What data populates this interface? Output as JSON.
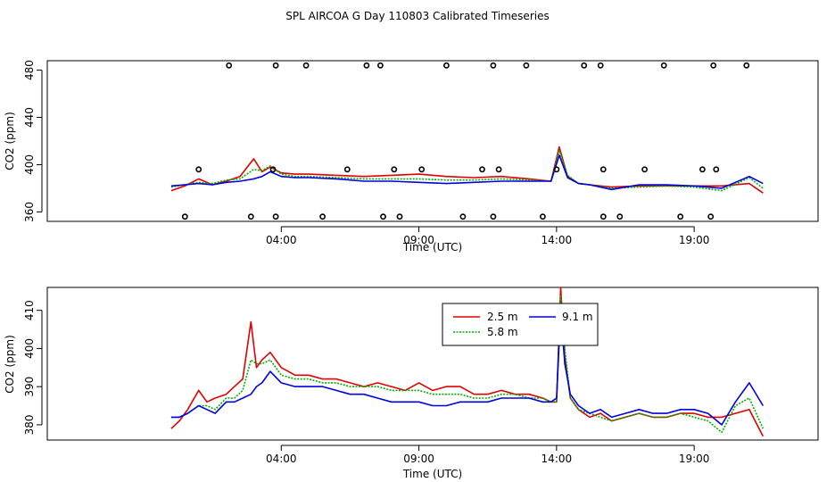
{
  "title": "SPL AIRCOA G  Day 110803  Calibrated Timeseries",
  "colors": {
    "s1": "#e00000",
    "s2": "#00b000",
    "s3": "#0000dd",
    "axis": "#000000"
  },
  "chart_data": [
    {
      "type": "line",
      "name": "top-panel",
      "xlabel": "Time (UTC)",
      "ylabel": "CO2 (ppm)",
      "xlim": [
        -4.5,
        23.5
      ],
      "ylim": [
        352,
        488
      ],
      "xticks": [
        4,
        9,
        14,
        19
      ],
      "xtick_labels": [
        "04:00",
        "09:00",
        "14:00",
        "19:00"
      ],
      "yticks": [
        360,
        400,
        440,
        480
      ],
      "ytick_labels": [
        "360",
        "400",
        "440",
        "480"
      ],
      "series": [
        {
          "name": "2.5 m",
          "color": "#e00000",
          "x": [
            0,
            0.5,
            1,
            1.5,
            2,
            2.5,
            3,
            3.3,
            3.6,
            4,
            4.5,
            5,
            6,
            7,
            8,
            9,
            10,
            11,
            12,
            13,
            13.8,
            14.1,
            14.4,
            14.8,
            15.2,
            16,
            17,
            18,
            19,
            20,
            21,
            21.5
          ],
          "y": [
            378,
            382,
            388,
            383,
            386,
            390,
            405,
            394,
            398,
            393,
            392,
            392,
            391,
            390,
            391,
            392,
            390,
            389,
            390,
            388,
            386,
            415,
            390,
            384,
            383,
            381,
            382,
            382,
            382,
            382,
            384,
            376
          ]
        },
        {
          "name": "5.8 m",
          "color": "#00b000",
          "x": [
            0,
            0.5,
            1,
            1.5,
            2,
            2.5,
            3,
            3.3,
            3.6,
            4,
            4.5,
            5,
            6,
            7,
            8,
            9,
            10,
            11,
            12,
            13,
            13.8,
            14.1,
            14.4,
            14.8,
            15.2,
            16,
            17,
            18,
            19,
            20,
            21,
            21.5
          ],
          "y": [
            381,
            383,
            385,
            384,
            387,
            388,
            396,
            395,
            399,
            392,
            390,
            390,
            389,
            388,
            388,
            388,
            387,
            387,
            388,
            387,
            386,
            412,
            391,
            384,
            383,
            380,
            381,
            382,
            381,
            378,
            389,
            380
          ]
        },
        {
          "name": "9.1 m",
          "color": "#0000dd",
          "x": [
            0,
            0.5,
            1,
            1.5,
            2,
            2.5,
            3,
            3.3,
            3.6,
            4,
            4.5,
            5,
            6,
            7,
            8,
            9,
            10,
            11,
            12,
            13,
            13.8,
            14.1,
            14.4,
            14.8,
            15.2,
            16,
            17,
            18,
            19,
            20,
            21,
            21.5
          ],
          "y": [
            382,
            383,
            384,
            383,
            385,
            386,
            388,
            390,
            394,
            390,
            389,
            389,
            388,
            386,
            386,
            385,
            384,
            385,
            386,
            386,
            386,
            408,
            389,
            384,
            383,
            379,
            383,
            383,
            382,
            380,
            390,
            384
          ]
        }
      ],
      "points": {
        "x": [
          2.1,
          3.8,
          4.9,
          7.1,
          7.6,
          10.0,
          11.7,
          12.9,
          15.0,
          15.6,
          17.9,
          19.7,
          20.9,
          0.5,
          2.9,
          3.8,
          5.5,
          7.7,
          8.3,
          10.6,
          11.7,
          13.5,
          15.7,
          16.3,
          18.5,
          19.6,
          1.0,
          3.7,
          6.4,
          8.1,
          9.1,
          11.3,
          11.9,
          14.0,
          15.7,
          17.2,
          19.3,
          19.8
        ],
        "y": [
          484,
          484,
          484,
          484,
          484,
          484,
          484,
          484,
          484,
          484,
          484,
          484,
          484,
          356,
          356,
          356,
          356,
          356,
          356,
          356,
          356,
          356,
          356,
          356,
          356,
          356,
          396,
          396,
          396,
          396,
          396,
          396,
          396,
          396,
          396,
          396,
          396,
          396
        ]
      }
    },
    {
      "type": "line",
      "name": "bottom-panel",
      "xlabel": "Time (UTC)",
      "ylabel": "CO2 (ppm)",
      "xlim": [
        -4.5,
        23.5
      ],
      "ylim": [
        376,
        416
      ],
      "xticks": [
        4,
        9,
        14,
        19
      ],
      "xtick_labels": [
        "04:00",
        "09:00",
        "14:00",
        "19:00"
      ],
      "yticks": [
        380,
        390,
        400,
        410
      ],
      "ytick_labels": [
        "380",
        "390",
        "400",
        "410"
      ],
      "legend": {
        "position": "top-center",
        "entries": [
          "2.5 m",
          "5.8 m",
          "9.1 m"
        ]
      },
      "series": [
        {
          "name": "2.5 m",
          "color": "#e00000",
          "x": [
            0,
            0.3,
            0.6,
            1,
            1.3,
            1.6,
            2,
            2.3,
            2.6,
            2.9,
            3.1,
            3.3,
            3.6,
            4,
            4.5,
            5,
            5.5,
            6,
            6.5,
            7,
            7.5,
            8,
            8.5,
            9,
            9.5,
            10,
            10.5,
            11,
            11.5,
            12,
            12.5,
            13,
            13.5,
            13.8,
            14.0,
            14.15,
            14.3,
            14.5,
            14.8,
            15.2,
            15.6,
            16,
            16.5,
            17,
            17.5,
            18,
            18.5,
            19,
            19.5,
            20,
            20.5,
            21,
            21.5
          ],
          "y": [
            379,
            381,
            384,
            389,
            386,
            387,
            388,
            390,
            392,
            407,
            395,
            397,
            399,
            395,
            393,
            393,
            392,
            392,
            391,
            390,
            391,
            390,
            389,
            391,
            389,
            390,
            390,
            388,
            388,
            389,
            388,
            388,
            387,
            386,
            386,
            416,
            398,
            387,
            384,
            382,
            383,
            381,
            382,
            383,
            382,
            382,
            383,
            383,
            382,
            382,
            383,
            384,
            377
          ]
        },
        {
          "name": "5.8 m",
          "color": "#00b000",
          "x": [
            0,
            0.3,
            0.6,
            1,
            1.3,
            1.6,
            2,
            2.3,
            2.6,
            2.9,
            3.1,
            3.3,
            3.6,
            4,
            4.5,
            5,
            5.5,
            6,
            6.5,
            7,
            7.5,
            8,
            8.5,
            9,
            9.5,
            10,
            10.5,
            11,
            11.5,
            12,
            12.5,
            13,
            13.5,
            13.8,
            14.0,
            14.15,
            14.3,
            14.5,
            14.8,
            15.2,
            15.6,
            16,
            16.5,
            17,
            17.5,
            18,
            18.5,
            19,
            19.5,
            20,
            20.5,
            21,
            21.5
          ],
          "y": [
            382,
            382,
            383,
            385,
            385,
            384,
            387,
            387,
            389,
            397,
            396,
            396,
            397,
            393,
            392,
            392,
            391,
            391,
            390,
            390,
            390,
            389,
            389,
            389,
            388,
            388,
            388,
            387,
            387,
            388,
            388,
            387,
            387,
            386,
            386,
            414,
            400,
            387,
            384,
            383,
            382,
            381,
            382,
            383,
            382,
            382,
            383,
            382,
            381,
            378,
            385,
            387,
            379
          ]
        },
        {
          "name": "9.1 m",
          "color": "#0000dd",
          "x": [
            0,
            0.3,
            0.6,
            1,
            1.3,
            1.6,
            2,
            2.3,
            2.6,
            2.9,
            3.1,
            3.3,
            3.6,
            4,
            4.5,
            5,
            5.5,
            6,
            6.5,
            7,
            7.5,
            8,
            8.5,
            9,
            9.5,
            10,
            10.5,
            11,
            11.5,
            12,
            12.5,
            13,
            13.5,
            13.8,
            14.0,
            14.15,
            14.3,
            14.5,
            14.8,
            15.2,
            15.6,
            16,
            16.5,
            17,
            17.5,
            18,
            18.5,
            19,
            19.5,
            20,
            20.5,
            21,
            21.5
          ],
          "y": [
            382,
            382,
            383,
            385,
            384,
            383,
            386,
            386,
            387,
            388,
            390,
            391,
            394,
            391,
            390,
            390,
            390,
            389,
            388,
            388,
            387,
            386,
            386,
            386,
            385,
            385,
            386,
            386,
            386,
            387,
            387,
            387,
            386,
            386,
            387,
            410,
            396,
            388,
            385,
            383,
            384,
            382,
            383,
            384,
            383,
            383,
            384,
            384,
            383,
            380,
            386,
            391,
            385
          ]
        }
      ]
    }
  ]
}
